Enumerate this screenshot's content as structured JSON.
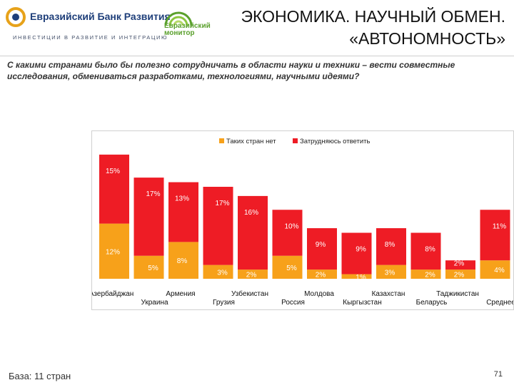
{
  "header": {
    "bank_name": "Евразийский Банк Развития",
    "bank_tagline": "ИНВЕСТИЦИИ В РАЗВИТИЕ И ИНТЕГРАЦИЮ",
    "monitor_name": "Евразийский\nмонитор",
    "title_line1": "ЭКОНОМИКА. НАУЧНЫЙ ОБМЕН.",
    "title_line2": "«АВТОНОМНОСТЬ»"
  },
  "question": "С какими странами было бы полезно сотрудничать в области науки и техники – вести совместные исследования, обмениваться разработками, технологиями, научными идеями?",
  "footer": {
    "base": "База: 11 стран",
    "page": "71"
  },
  "colors": {
    "no_such_countries": "#f7a11a",
    "hard_to_say": "#ee1c25",
    "title_text": "#111111",
    "brand_blue": "#1f3f7a",
    "brand_green": "#5aa02c"
  },
  "chart_data": {
    "type": "bar",
    "stacked": true,
    "legend_position": "top",
    "categories": [
      "Азербайджан",
      "Украина",
      "Армения",
      "Грузия",
      "Узбекистан",
      "Россия",
      "Молдова",
      "Кыргызстан",
      "Казахстан",
      "Беларусь",
      "Таджикистан",
      "Среднее"
    ],
    "series": [
      {
        "name": "Таких стран нет",
        "values": [
          12,
          5,
          8,
          3,
          2,
          5,
          2,
          1,
          3,
          2,
          2,
          4
        ],
        "labels": [
          "12%",
          "5%",
          "8%",
          "3%",
          "2%",
          "5%",
          "2%",
          "1%",
          "3%",
          "2%",
          "2%",
          "4%"
        ]
      },
      {
        "name": "Затрудняюсь ответить",
        "values": [
          15,
          17,
          13,
          17,
          16,
          10,
          9,
          9,
          8,
          8,
          2,
          11
        ],
        "labels": [
          "15%",
          "17%",
          "13%",
          "17%",
          "16%",
          "10%",
          "9%",
          "9%",
          "8%",
          "8%",
          "2%",
          "11%"
        ]
      }
    ],
    "ylim": [
      0,
      30
    ],
    "grid": false
  }
}
